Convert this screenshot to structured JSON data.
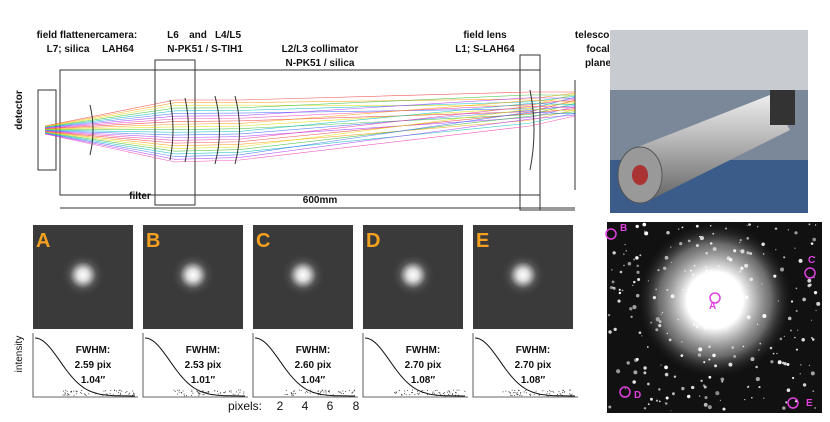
{
  "diagram": {
    "labels": [
      [
        "field flattener",
        "L7; silica"
      ],
      [
        "camera:",
        "LAH64"
      ],
      [
        "L6",
        "and",
        "L4/L5",
        "N-PK51 / S-TIH1"
      ],
      [
        "L2/L3 collimator",
        "N-PK51 / silica"
      ],
      [
        "field lens",
        "L1; S-LAH64"
      ],
      [
        "telescope",
        "focal",
        "plane"
      ],
      [
        "detector"
      ],
      [
        "filter"
      ],
      [
        "600mm"
      ]
    ]
  },
  "panels": [
    {
      "letter": "A",
      "fwhm_label": "FWHM:",
      "fwhm_pix": "2.59 pix",
      "fwhm_arcsec": "1.04″"
    },
    {
      "letter": "B",
      "fwhm_label": "FWHM:",
      "fwhm_pix": "2.53 pix",
      "fwhm_arcsec": "1.01″"
    },
    {
      "letter": "C",
      "fwhm_label": "FWHM:",
      "fwhm_pix": "2.60 pix",
      "fwhm_arcsec": "1.04″"
    },
    {
      "letter": "D",
      "fwhm_label": "FWHM:",
      "fwhm_pix": "2.70 pix",
      "fwhm_arcsec": "1.08″"
    },
    {
      "letter": "E",
      "fwhm_label": "FWHM:",
      "fwhm_pix": "2.70 pix",
      "fwhm_arcsec": "1.08″"
    }
  ],
  "profile_axis": {
    "y_label": "intensity",
    "x_label": "pixels:",
    "x_ticks": [
      "2",
      "4",
      "6",
      "8"
    ]
  },
  "star_field": {
    "markers": [
      "A",
      "B",
      "C",
      "D",
      "E"
    ]
  }
}
